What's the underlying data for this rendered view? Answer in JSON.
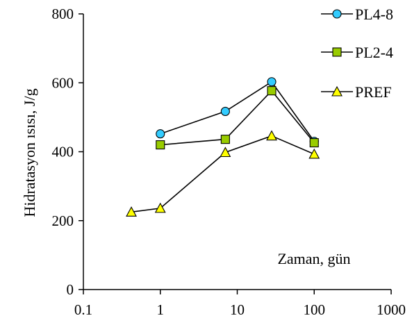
{
  "chart_data": {
    "type": "line",
    "title": "",
    "xlabel": "Zaman, gün",
    "ylabel": "Hidratasyon ısısı, J/g",
    "x_scale": "log",
    "xlim": [
      0.1,
      1000
    ],
    "ylim": [
      0,
      800
    ],
    "x_ticks": [
      "0.1",
      "1",
      "10",
      "100",
      "1000"
    ],
    "y_ticks": [
      "0",
      "200",
      "400",
      "600",
      "800"
    ],
    "grid": false,
    "legend_position": "top-right",
    "series": [
      {
        "name": "PL4-8",
        "marker": "circle",
        "color": "#33ccff",
        "x": [
          1,
          7,
          28,
          100
        ],
        "y": [
          452,
          517,
          603,
          430
        ]
      },
      {
        "name": "PL2-4",
        "marker": "square",
        "color": "#99cc00",
        "x": [
          1,
          7,
          28,
          100
        ],
        "y": [
          420,
          436,
          577,
          426
        ]
      },
      {
        "name": "PREF",
        "marker": "triangle",
        "color": "#ffff00",
        "x": [
          0.42,
          1,
          7,
          28,
          100
        ],
        "y": [
          225,
          236,
          398,
          446,
          393
        ]
      }
    ]
  }
}
